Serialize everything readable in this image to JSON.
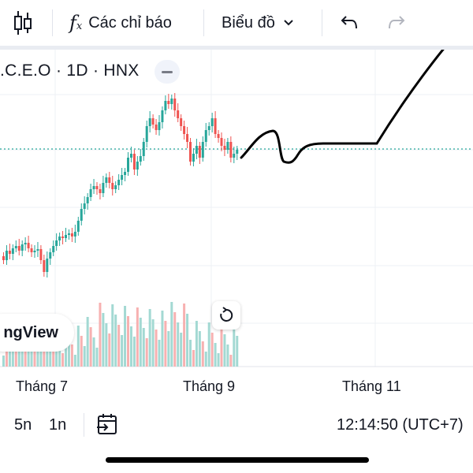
{
  "toolbar": {
    "candle_type_icon": "candlestick-icon",
    "indicators_label": "Các chỉ báo",
    "chart_type_label": "Biểu đồ",
    "undo_icon": "undo-icon",
    "redo_icon": "redo-icon"
  },
  "chart": {
    "symbol": ".C.E.O · 1D · HNX",
    "logo_text": "ngView",
    "x_labels": [
      "Tháng 7",
      "Tháng 9",
      "Tháng 11"
    ],
    "colors": {
      "up": "#26a69a",
      "down": "#ef5350",
      "up_vol": "#a3d9d3",
      "down_vol": "#f7b1b1"
    }
  },
  "bottom": {
    "ranges": [
      "5n",
      "1n"
    ],
    "time": "12:14:50 (UTC+7)"
  }
}
